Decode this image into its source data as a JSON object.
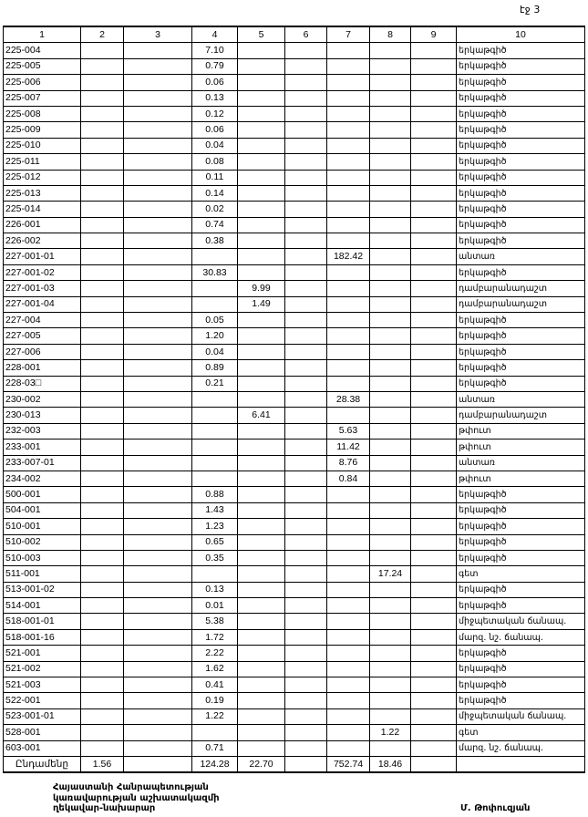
{
  "page_label": "էջ 3",
  "columns": [
    "1",
    "2",
    "3",
    "4",
    "5",
    "6",
    "7",
    "8",
    "9",
    "10"
  ],
  "rows": [
    [
      "225-004",
      "",
      "",
      "7.10",
      "",
      "",
      "",
      "",
      "",
      "երկաթգիծ"
    ],
    [
      "225-005",
      "",
      "",
      "0.79",
      "",
      "",
      "",
      "",
      "",
      "երկաթգիծ"
    ],
    [
      "225-006",
      "",
      "",
      "0.06",
      "",
      "",
      "",
      "",
      "",
      "երկաթգիծ"
    ],
    [
      "225-007",
      "",
      "",
      "0.13",
      "",
      "",
      "",
      "",
      "",
      "երկաթգիծ"
    ],
    [
      "225-008",
      "",
      "",
      "0.12",
      "",
      "",
      "",
      "",
      "",
      "երկաթգիծ"
    ],
    [
      "225-009",
      "",
      "",
      "0.06",
      "",
      "",
      "",
      "",
      "",
      "երկաթգիծ"
    ],
    [
      "225-010",
      "",
      "",
      "0.04",
      "",
      "",
      "",
      "",
      "",
      "երկաթգիծ"
    ],
    [
      "225-011",
      "",
      "",
      "0.08",
      "",
      "",
      "",
      "",
      "",
      "երկաթգիծ"
    ],
    [
      "225-012",
      "",
      "",
      "0.11",
      "",
      "",
      "",
      "",
      "",
      "երկաթգիծ"
    ],
    [
      "225-013",
      "",
      "",
      "0.14",
      "",
      "",
      "",
      "",
      "",
      "երկաթգիծ"
    ],
    [
      "225-014",
      "",
      "",
      "0.02",
      "",
      "",
      "",
      "",
      "",
      "երկաթգիծ"
    ],
    [
      "226-001",
      "",
      "",
      "0.74",
      "",
      "",
      "",
      "",
      "",
      "երկաթգիծ"
    ],
    [
      "226-002",
      "",
      "",
      "0.38",
      "",
      "",
      "",
      "",
      "",
      "երկաթգիծ"
    ],
    [
      "227-001-01",
      "",
      "",
      "",
      "",
      "",
      "182.42",
      "",
      "",
      "անտառ"
    ],
    [
      "227-001-02",
      "",
      "",
      "30.83",
      "",
      "",
      "",
      "",
      "",
      "երկաթգիծ"
    ],
    [
      "227-001-03",
      "",
      "",
      "",
      "9.99",
      "",
      "",
      "",
      "",
      "դամբարանադաշտ"
    ],
    [
      "227-001-04",
      "",
      "",
      "",
      "1.49",
      "",
      "",
      "",
      "",
      "դամբարանադաշտ"
    ],
    [
      "227-004",
      "",
      "",
      "0.05",
      "",
      "",
      "",
      "",
      "",
      "երկաթգիծ"
    ],
    [
      "227-005",
      "",
      "",
      "1.20",
      "",
      "",
      "",
      "",
      "",
      "երկաթգիծ"
    ],
    [
      "227-006",
      "",
      "",
      "0.04",
      "",
      "",
      "",
      "",
      "",
      "երկաթգիծ"
    ],
    [
      "228-001",
      "",
      "",
      "0.89",
      "",
      "",
      "",
      "",
      "",
      "երկաթգիծ"
    ],
    [
      "228-03□",
      "",
      "",
      "0.21",
      "",
      "",
      "",
      "",
      "",
      "երկաթգիծ"
    ],
    [
      "230-002",
      "",
      "",
      "",
      "",
      "",
      "28.38",
      "",
      "",
      "անտառ"
    ],
    [
      "230-013",
      "",
      "",
      "",
      "6.41",
      "",
      "",
      "",
      "",
      "դամբարանադաշտ"
    ],
    [
      "232-003",
      "",
      "",
      "",
      "",
      "",
      "5.63",
      "",
      "",
      "թփուտ"
    ],
    [
      "233-001",
      "",
      "",
      "",
      "",
      "",
      "11.42",
      "",
      "",
      "թփուտ"
    ],
    [
      "233-007-01",
      "",
      "",
      "",
      "",
      "",
      "8.76",
      "",
      "",
      "անտառ"
    ],
    [
      "234-002",
      "",
      "",
      "",
      "",
      "",
      "0.84",
      "",
      "",
      "թփուտ"
    ],
    [
      "500-001",
      "",
      "",
      "0.88",
      "",
      "",
      "",
      "",
      "",
      "երկաթգիծ"
    ],
    [
      "504-001",
      "",
      "",
      "1.43",
      "",
      "",
      "",
      "",
      "",
      "երկաթգիծ"
    ],
    [
      "510-001",
      "",
      "",
      "1.23",
      "",
      "",
      "",
      "",
      "",
      "երկաթգիծ"
    ],
    [
      "510-002",
      "",
      "",
      "0.65",
      "",
      "",
      "",
      "",
      "",
      "երկաթգիծ"
    ],
    [
      "510-003",
      "",
      "",
      "0.35",
      "",
      "",
      "",
      "",
      "",
      "երկաթգիծ"
    ],
    [
      "511-001",
      "",
      "",
      "",
      "",
      "",
      "",
      "17.24",
      "",
      "գետ"
    ],
    [
      "513-001-02",
      "",
      "",
      "0.13",
      "",
      "",
      "",
      "",
      "",
      "երկաթգիծ"
    ],
    [
      "514-001",
      "",
      "",
      "0.01",
      "",
      "",
      "",
      "",
      "",
      "երկաթգիծ"
    ],
    [
      "518-001-01",
      "",
      "",
      "5.38",
      "",
      "",
      "",
      "",
      "",
      "միջպետական ճանապ."
    ],
    [
      "518-001-16",
      "",
      "",
      "1.72",
      "",
      "",
      "",
      "",
      "",
      "մարզ. նշ. ճանապ."
    ],
    [
      "521-001",
      "",
      "",
      "2.22",
      "",
      "",
      "",
      "",
      "",
      "երկաթգիծ"
    ],
    [
      "521-002",
      "",
      "",
      "1.62",
      "",
      "",
      "",
      "",
      "",
      "երկաթգիծ"
    ],
    [
      "521-003",
      "",
      "",
      "0.41",
      "",
      "",
      "",
      "",
      "",
      "երկաթգիծ"
    ],
    [
      "522-001",
      "",
      "",
      "0.19",
      "",
      "",
      "",
      "",
      "",
      "երկաթգիծ"
    ],
    [
      "523-001-01",
      "",
      "",
      "1.22",
      "",
      "",
      "",
      "",
      "",
      "միջպետական ճանապ."
    ],
    [
      "528-001",
      "",
      "",
      "",
      "",
      "",
      "",
      "1.22",
      "",
      "գետ"
    ],
    [
      "603-001",
      "",
      "",
      "0.71",
      "",
      "",
      "",
      "",
      "",
      "մարզ. նշ. ճանապ."
    ]
  ],
  "total": [
    "Ընդամենը",
    "1.56",
    "",
    "124.28",
    "22.70",
    "",
    "752.74",
    "18.46",
    "",
    ""
  ],
  "footer": {
    "line1": "Հայաստանի Հանրապետության",
    "line2": "կառավարության աշխատակազմի",
    "line3": "ղեկավար-նախարար",
    "signatory": "Մ. Թոփուզյան"
  }
}
